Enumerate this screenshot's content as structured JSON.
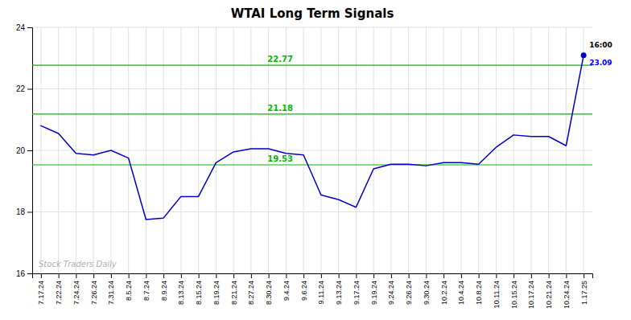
{
  "chart_data": {
    "type": "line",
    "title": "WTAI Long Term Signals",
    "watermark": "Stock Traders Daily",
    "categories": [
      "7.17.24",
      "7.22.24",
      "7.24.24",
      "7.26.24",
      "7.31.24",
      "8.5.24",
      "8.7.24",
      "8.9.24",
      "8.13.24",
      "8.15.24",
      "8.19.24",
      "8.21.24",
      "8.27.24",
      "8.30.24",
      "9.4.24",
      "9.6.24",
      "9.11.24",
      "9.13.24",
      "9.17.24",
      "9.19.24",
      "9.24.24",
      "9.26.24",
      "9.30.24",
      "10.2.24",
      "10.4.24",
      "10.8.24",
      "10.11.24",
      "10.15.24",
      "10.17.24",
      "10.21.24",
      "10.24.24",
      "1.17.25"
    ],
    "values": [
      20.8,
      20.55,
      19.9,
      19.85,
      20.0,
      19.75,
      17.75,
      17.8,
      18.5,
      18.5,
      19.6,
      19.95,
      20.05,
      20.05,
      19.9,
      19.85,
      18.55,
      18.4,
      18.15,
      19.4,
      19.55,
      19.55,
      19.5,
      19.6,
      19.6,
      19.55,
      20.1,
      20.5,
      20.45,
      20.45,
      20.15,
      23.09
    ],
    "color": "#0000cc",
    "hlines": [
      {
        "value": 22.77,
        "label": "22.77",
        "color": "#00bb00"
      },
      {
        "value": 21.18,
        "label": "21.18",
        "color": "#00bb00"
      },
      {
        "value": 19.53,
        "label": "19.53",
        "color": "#00bb00"
      }
    ],
    "annotations": [
      {
        "text": "16:00",
        "color": "#000000"
      },
      {
        "text": "23.09",
        "color": "#0000ff"
      }
    ],
    "ylim": [
      16,
      24
    ],
    "yticks": [
      16,
      18,
      20,
      22,
      24
    ],
    "grid": true
  }
}
